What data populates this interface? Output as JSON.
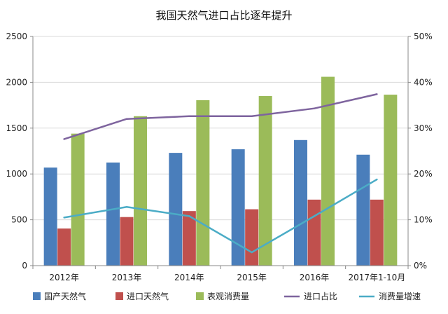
{
  "chart_data": {
    "type": "bar",
    "title": "我国天然气进口占比逐年提升",
    "categories": [
      "2012年",
      "2013年",
      "2014年",
      "2015年",
      "2016年",
      "2017年1-10月"
    ],
    "y_left": {
      "ylim": [
        0,
        2500
      ],
      "ticks": [
        "0",
        "500",
        "1000",
        "1500",
        "2000",
        "2500"
      ],
      "tick_values": [
        0,
        500,
        1000,
        1500,
        2000,
        2500
      ]
    },
    "y_right": {
      "ylim": [
        0,
        50
      ],
      "ticks": [
        "0%",
        "10%",
        "20%",
        "30%",
        "40%",
        "50%"
      ],
      "tick_values": [
        0,
        10,
        20,
        30,
        40,
        50
      ]
    },
    "series": [
      {
        "name": "国产天然气",
        "type": "bar",
        "axis": "left",
        "color": "#4a7ebb",
        "values": [
          1070,
          1125,
          1230,
          1270,
          1370,
          1210
        ]
      },
      {
        "name": "进口天然气",
        "type": "bar",
        "axis": "left",
        "color": "#c0504d",
        "values": [
          405,
          530,
          595,
          615,
          720,
          720
        ]
      },
      {
        "name": "表观消费量",
        "type": "bar",
        "axis": "left",
        "color": "#9bbb59",
        "values": [
          1440,
          1630,
          1805,
          1850,
          2060,
          1865
        ]
      },
      {
        "name": "进口占比",
        "type": "line",
        "axis": "right",
        "color": "#7e649e",
        "values": [
          27.6,
          32.0,
          32.6,
          32.6,
          34.3,
          37.4
        ]
      },
      {
        "name": "消费量增速",
        "type": "line",
        "axis": "right",
        "color": "#4bacc6",
        "values": [
          10.5,
          12.8,
          10.8,
          2.9,
          10.8,
          18.8
        ]
      }
    ],
    "legend_position": "bottom",
    "grid": true
  }
}
